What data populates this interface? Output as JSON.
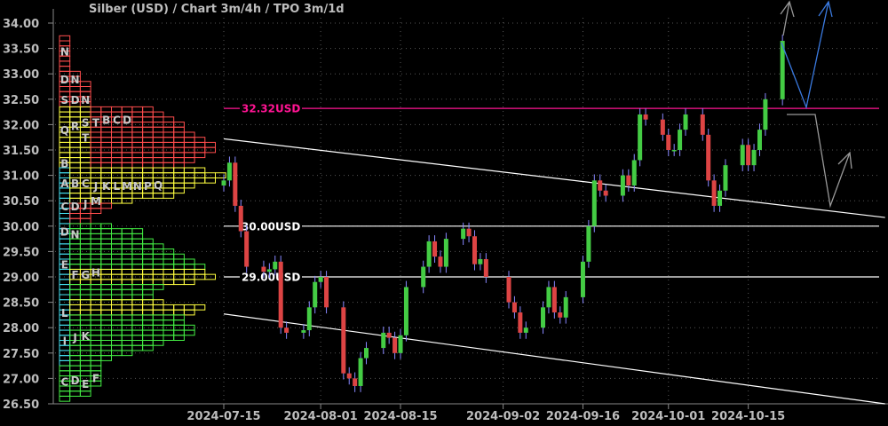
{
  "chart_data": {
    "type": "candlestick",
    "title": "Silber (USD) /  Chart 3m/4h / TPO 3m/1d",
    "ylim": [
      26.5,
      34.0
    ],
    "yticks": [
      "26.50",
      "27.00",
      "27.50",
      "28.00",
      "28.50",
      "29.00",
      "29.50",
      "30.00",
      "30.50",
      "31.00",
      "31.50",
      "32.00",
      "32.50",
      "33.00",
      "33.50",
      "34.00"
    ],
    "xticks": [
      "2024-07-15",
      "2024-08-01",
      "2024-08-15",
      "2024-09-02",
      "2024-09-16",
      "2024-10-01",
      "2024-10-15"
    ],
    "grid": true,
    "colors": {
      "background": "#000000",
      "up": "#44cc44",
      "down": "#dd4444",
      "wick": "#8888ff",
      "resistance": "#ff1493",
      "level": "#ffffff",
      "projection_blue": "#3a7ae0",
      "projection_gray": "#999999"
    },
    "closes": [
      [
        "2024-07-15",
        30.9
      ],
      [
        "2024-07-16",
        31.25
      ],
      [
        "2024-07-17",
        30.4
      ],
      [
        "2024-07-18",
        29.9
      ],
      [
        "2024-07-19",
        29.2
      ],
      [
        "2024-07-22",
        29.1
      ],
      [
        "2024-07-23",
        29.15
      ],
      [
        "2024-07-24",
        29.3
      ],
      [
        "2024-07-25",
        28.0
      ],
      [
        "2024-07-26",
        27.9
      ],
      [
        "2024-07-29",
        27.95
      ],
      [
        "2024-07-30",
        28.4
      ],
      [
        "2024-07-31",
        28.9
      ],
      [
        "2024-08-01",
        29.0
      ],
      [
        "2024-08-02",
        28.4
      ],
      [
        "2024-08-05",
        27.1
      ],
      [
        "2024-08-06",
        27.0
      ],
      [
        "2024-08-07",
        26.85
      ],
      [
        "2024-08-08",
        27.4
      ],
      [
        "2024-08-09",
        27.6
      ],
      [
        "2024-08-12",
        27.9
      ],
      [
        "2024-08-13",
        27.8
      ],
      [
        "2024-08-14",
        27.5
      ],
      [
        "2024-08-15",
        27.85
      ],
      [
        "2024-08-16",
        28.8
      ],
      [
        "2024-08-19",
        29.2
      ],
      [
        "2024-08-20",
        29.7
      ],
      [
        "2024-08-21",
        29.4
      ],
      [
        "2024-08-22",
        29.2
      ],
      [
        "2024-08-23",
        29.75
      ],
      [
        "2024-08-26",
        29.95
      ],
      [
        "2024-08-27",
        29.8
      ],
      [
        "2024-08-28",
        29.25
      ],
      [
        "2024-08-29",
        29.35
      ],
      [
        "2024-08-30",
        29.0
      ],
      [
        "2024-09-03",
        28.5
      ],
      [
        "2024-09-04",
        28.3
      ],
      [
        "2024-09-05",
        27.9
      ],
      [
        "2024-09-06",
        28.0
      ],
      [
        "2024-09-09",
        28.4
      ],
      [
        "2024-09-10",
        28.8
      ],
      [
        "2024-09-11",
        28.3
      ],
      [
        "2024-09-12",
        28.2
      ],
      [
        "2024-09-13",
        28.6
      ],
      [
        "2024-09-16",
        29.3
      ],
      [
        "2024-09-17",
        30.0
      ],
      [
        "2024-09-18",
        30.9
      ],
      [
        "2024-09-19",
        30.7
      ],
      [
        "2024-09-20",
        30.6
      ],
      [
        "2024-09-23",
        31.0
      ],
      [
        "2024-09-24",
        30.8
      ],
      [
        "2024-09-25",
        31.3
      ],
      [
        "2024-09-26",
        32.2
      ],
      [
        "2024-09-27",
        32.1
      ],
      [
        "2024-09-30",
        31.8
      ],
      [
        "2024-10-01",
        31.5
      ],
      [
        "2024-10-02",
        31.5
      ],
      [
        "2024-10-03",
        31.9
      ],
      [
        "2024-10-04",
        32.2
      ],
      [
        "2024-10-07",
        31.8
      ],
      [
        "2024-10-08",
        30.9
      ],
      [
        "2024-10-09",
        30.4
      ],
      [
        "2024-10-10",
        30.7
      ],
      [
        "2024-10-11",
        31.2
      ],
      [
        "2024-10-14",
        31.6
      ],
      [
        "2024-10-15",
        31.2
      ],
      [
        "2024-10-16",
        31.5
      ],
      [
        "2024-10-17",
        31.9
      ],
      [
        "2024-10-18",
        32.5
      ],
      [
        "2024-10-21",
        33.65
      ]
    ],
    "levels": [
      {
        "price": 32.32,
        "label": "32.32USD",
        "color": "#ff1493"
      },
      {
        "price": 30.0,
        "label": "30.00USD",
        "color": "#ffffff"
      },
      {
        "price": 29.0,
        "label": "29.00USD",
        "color": "#ffffff"
      }
    ],
    "trendlines": [
      {
        "from": [
          "2024-07-15",
          31.72
        ],
        "to": [
          "2024-11-08",
          30.17
        ]
      },
      {
        "from": [
          "2024-07-15",
          28.27
        ],
        "to": [
          "2024-11-08",
          26.5
        ]
      }
    ],
    "tpo_profile": {
      "counts": [
        [
          33.7,
          1
        ],
        [
          33.6,
          1
        ],
        [
          33.5,
          1
        ],
        [
          33.4,
          1
        ],
        [
          33.3,
          1
        ],
        [
          33.2,
          1
        ],
        [
          33.1,
          1
        ],
        [
          33.0,
          2
        ],
        [
          32.9,
          2
        ],
        [
          32.8,
          3
        ],
        [
          32.7,
          3
        ],
        [
          32.6,
          3
        ],
        [
          32.5,
          3
        ],
        [
          32.4,
          3
        ],
        [
          32.3,
          9
        ],
        [
          32.2,
          10
        ],
        [
          32.1,
          11
        ],
        [
          32.0,
          12
        ],
        [
          31.9,
          12
        ],
        [
          31.8,
          13
        ],
        [
          31.7,
          14
        ],
        [
          31.6,
          15
        ],
        [
          31.5,
          15
        ],
        [
          31.4,
          14
        ],
        [
          31.3,
          13
        ],
        [
          31.2,
          12
        ],
        [
          31.1,
          14
        ],
        [
          31.0,
          16
        ],
        [
          30.9,
          15
        ],
        [
          30.8,
          13
        ],
        [
          30.7,
          12
        ],
        [
          30.6,
          11
        ],
        [
          30.5,
          7
        ],
        [
          30.4,
          5
        ],
        [
          30.3,
          4
        ],
        [
          30.2,
          3
        ],
        [
          30.1,
          3
        ],
        [
          30.0,
          5
        ],
        [
          29.9,
          8
        ],
        [
          29.8,
          8
        ],
        [
          29.7,
          9
        ],
        [
          29.6,
          10
        ],
        [
          29.5,
          11
        ],
        [
          29.4,
          12
        ],
        [
          29.3,
          13
        ],
        [
          29.2,
          14
        ],
        [
          29.1,
          14
        ],
        [
          29.0,
          15
        ],
        [
          28.9,
          13
        ],
        [
          28.8,
          10
        ],
        [
          28.7,
          9
        ],
        [
          28.6,
          9
        ],
        [
          28.5,
          10
        ],
        [
          28.4,
          14
        ],
        [
          28.3,
          13
        ],
        [
          28.2,
          12
        ],
        [
          28.1,
          12
        ],
        [
          28.0,
          13
        ],
        [
          27.9,
          13
        ],
        [
          27.8,
          12
        ],
        [
          27.7,
          10
        ],
        [
          27.6,
          9
        ],
        [
          27.5,
          7
        ],
        [
          27.4,
          5
        ],
        [
          27.3,
          4
        ],
        [
          27.2,
          4
        ],
        [
          27.1,
          4
        ],
        [
          27.0,
          4
        ],
        [
          26.9,
          4
        ],
        [
          26.8,
          3
        ],
        [
          26.7,
          3
        ],
        [
          26.6,
          1
        ]
      ],
      "letters": [
        [
          "N",
          33.45,
          0
        ],
        [
          "D",
          32.9,
          0
        ],
        [
          "N",
          32.9,
          1
        ],
        [
          "S",
          32.5,
          0
        ],
        [
          "D",
          32.5,
          1
        ],
        [
          "N",
          32.5,
          2
        ],
        [
          "Q",
          31.9,
          0
        ],
        [
          "R",
          31.98,
          1
        ],
        [
          "S",
          32.05,
          2
        ],
        [
          "T",
          32.05,
          3
        ],
        [
          "B",
          32.1,
          4
        ],
        [
          "C",
          32.1,
          5
        ],
        [
          "D",
          32.1,
          6
        ],
        [
          "T",
          31.75,
          2
        ],
        [
          "B",
          31.25,
          0
        ],
        [
          "A",
          30.85,
          0
        ],
        [
          "B",
          30.85,
          1
        ],
        [
          "C",
          30.85,
          2
        ],
        [
          "J",
          30.8,
          3
        ],
        [
          "K",
          30.8,
          4
        ],
        [
          "L",
          30.8,
          5
        ],
        [
          "M",
          30.8,
          6
        ],
        [
          "N",
          30.8,
          7
        ],
        [
          "P",
          30.8,
          8
        ],
        [
          "Q",
          30.82,
          9
        ],
        [
          "C",
          30.4,
          0
        ],
        [
          "D",
          30.4,
          1
        ],
        [
          "J",
          30.45,
          2
        ],
        [
          "M",
          30.5,
          3
        ],
        [
          "D",
          29.9,
          0
        ],
        [
          "N",
          29.85,
          1
        ],
        [
          "E",
          29.25,
          0
        ],
        [
          "F",
          29.05,
          1
        ],
        [
          "G",
          29.05,
          2
        ],
        [
          "H",
          29.1,
          3
        ],
        [
          "L",
          28.3,
          0
        ],
        [
          "I",
          27.75,
          0
        ],
        [
          "J",
          27.82,
          1
        ],
        [
          "K",
          27.85,
          2
        ],
        [
          "C",
          26.95,
          0
        ],
        [
          "D",
          26.97,
          1
        ],
        [
          "E",
          26.9,
          2
        ],
        [
          "F",
          27.02,
          3
        ]
      ]
    }
  }
}
